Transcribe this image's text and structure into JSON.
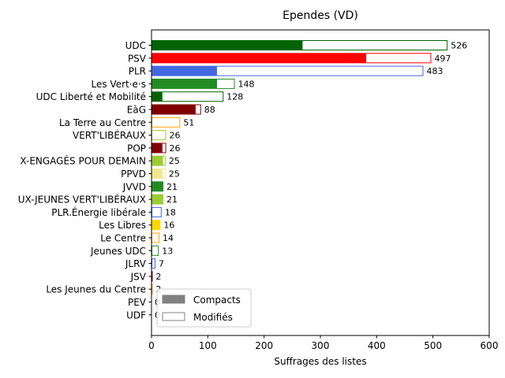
{
  "chart_data": {
    "type": "bar",
    "orientation": "horizontal",
    "stacked": true,
    "title": "Ependes (VD)",
    "xlabel": "Suffrages des listes",
    "ylabel": "",
    "xlim": [
      0,
      600
    ],
    "xticks": [
      0,
      100,
      200,
      300,
      400,
      500,
      600
    ],
    "grid": false,
    "legend_position": "bottom-left",
    "legend": [
      {
        "label": "Compacts",
        "style": "filled",
        "color": "#808080"
      },
      {
        "label": "Modifiés",
        "style": "outline",
        "color": "#808080"
      }
    ],
    "categories": [
      "UDC",
      "PSV",
      "PLR",
      "Les Vert·e·s",
      "UDC Liberté et Mobilité",
      "EàG",
      "La Terre au Centre",
      "VERT'LIBÉRAUX",
      "POP",
      "X-ENGAGÉS POUR DEMAIN",
      "PPVD",
      "JVVD",
      "UX-JEUNES VERT'LIBÉRAUX",
      "PLR.Énergie libérale",
      "Les Libres",
      "Le Centre",
      "Jeunes UDC",
      "JLRV",
      "JSV",
      "Les Jeunes du Centre",
      "PEV",
      "UDF"
    ],
    "series": [
      {
        "name": "Compacts",
        "values": [
          267,
          380,
          115,
          115,
          18,
          77,
          0,
          0,
          18,
          19,
          18,
          19,
          19,
          0,
          16,
          0,
          0,
          0,
          0,
          0,
          0,
          0
        ]
      },
      {
        "name": "Modifiés",
        "values": [
          259,
          117,
          368,
          33,
          110,
          11,
          51,
          26,
          8,
          6,
          7,
          2,
          2,
          18,
          0,
          14,
          13,
          7,
          2,
          2,
          0,
          0
        ]
      }
    ],
    "totals": [
      "526",
      "497",
      "483",
      "148",
      "128",
      "88",
      "51",
      "26",
      "26",
      "25",
      "25",
      "21",
      "21",
      "18",
      "16",
      "14",
      "13",
      "7",
      "2",
      "2",
      "0",
      "0"
    ],
    "colors": [
      "#006400",
      "#ff0000",
      "#4169e1",
      "#228b22",
      "#006400",
      "#800000",
      "#ffa500",
      "#9acd32",
      "#800000",
      "#9acd32",
      "#f0e68c",
      "#228b22",
      "#9acd32",
      "#4169e1",
      "#ffd700",
      "#ffa500",
      "#228b22",
      "#4169e1",
      "#8b0000",
      "#ffa500",
      "#ffd700",
      "#4169e1"
    ]
  }
}
